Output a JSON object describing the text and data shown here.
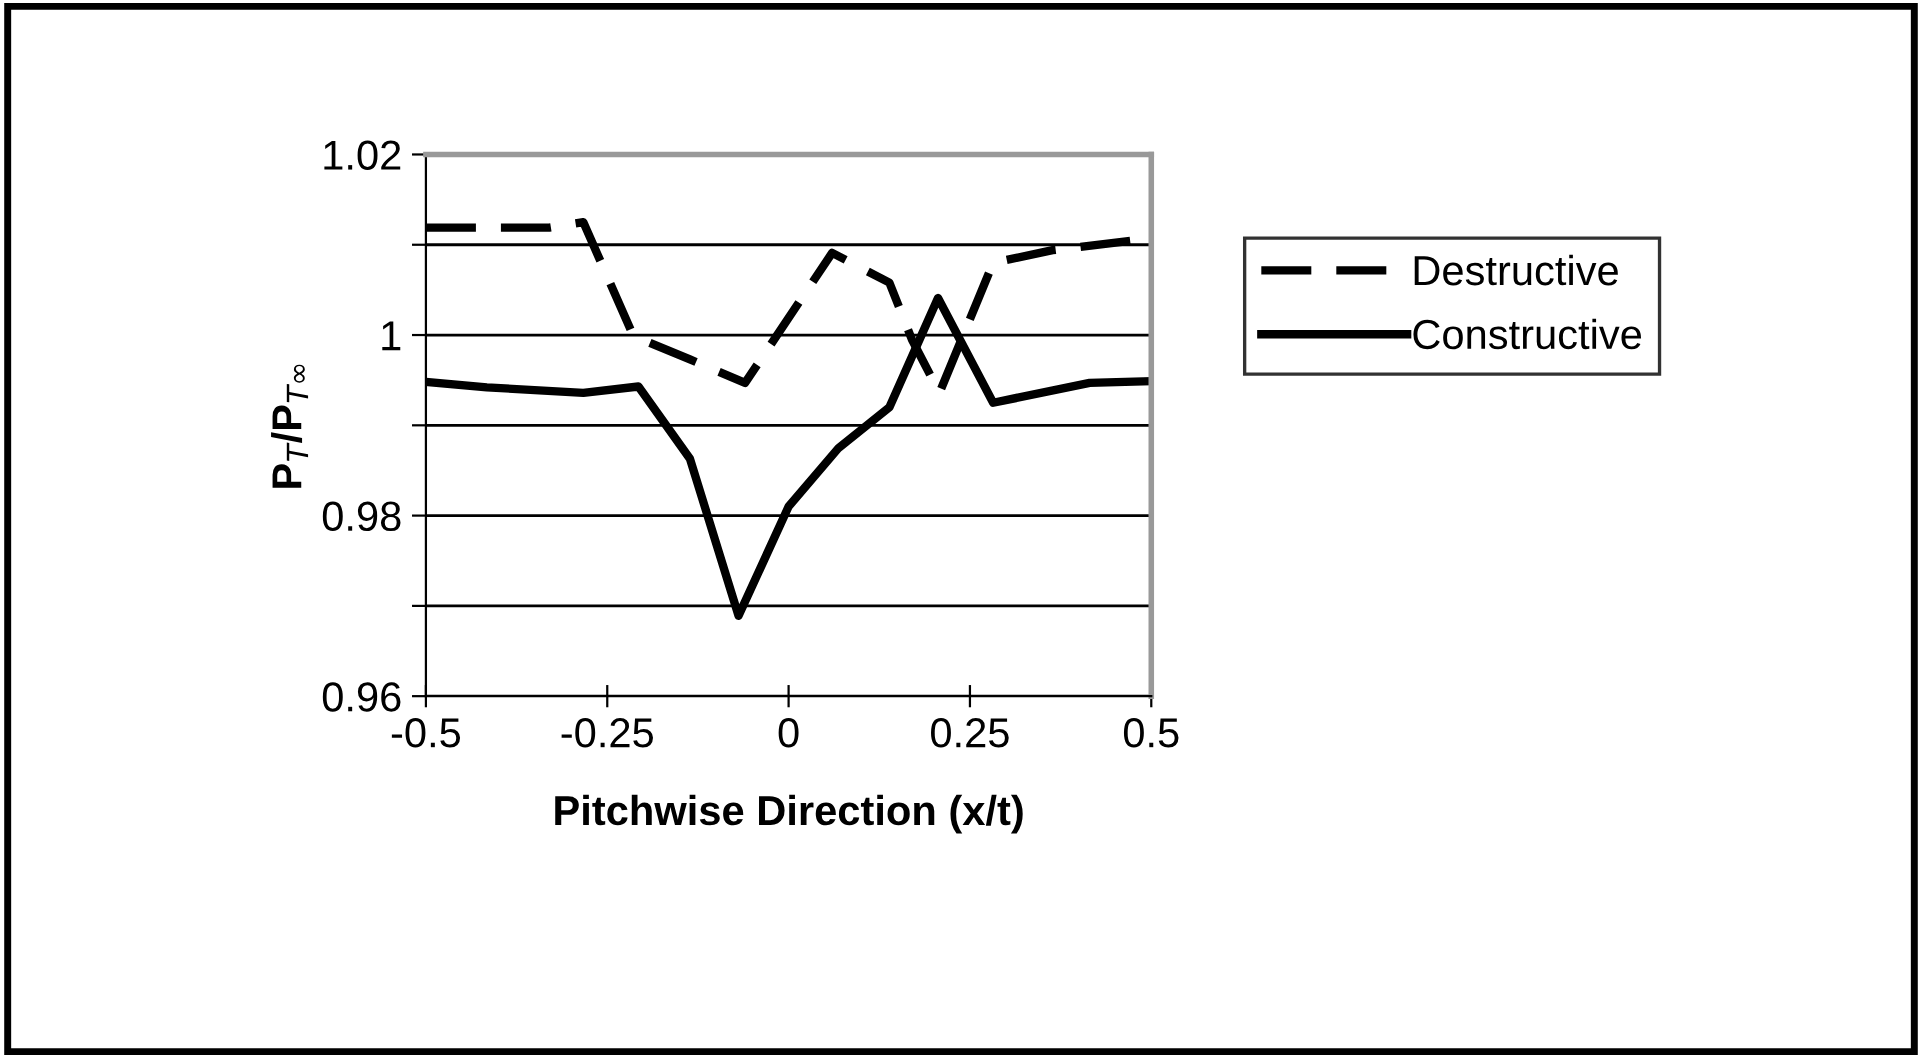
{
  "chart_data": {
    "type": "line",
    "xlabel": "Pitchwise Direction (x/t)",
    "ylabel": "P$_{T}$/P$_{T∞}$",
    "xlim": [
      -0.5,
      0.5
    ],
    "xticks": [
      -0.5,
      -0.25,
      0,
      0.25,
      0.5
    ],
    "ylim": [
      0.96,
      1.02
    ],
    "yticks": [
      0.96,
      {
        "value": 0.97,
        "label": null
      },
      0.98,
      {
        "value": 0.99,
        "label": null
      },
      1,
      {
        "value": 1.01,
        "label": null
      },
      1.02
    ],
    "grid": "y",
    "legend": "right",
    "marker": "none",
    "series": [
      {
        "name": "Destructive",
        "color": "#000000",
        "line_style": "dashed",
        "x": [
          -0.5,
          -0.33,
          -0.283,
          -0.214,
          -0.136,
          -0.06,
          0.06,
          0.139,
          0.17,
          0.208,
          0.282,
          0.364,
          0.5
        ],
        "values": [
          1.0119,
          1.0119,
          1.0125,
          0.9999,
          0.9973,
          0.9947,
          1.0091,
          1.0058,
          0.9995,
          0.9936,
          1.008,
          1.0094,
          1.0107
        ]
      },
      {
        "name": "Constructive",
        "color": "#000000",
        "line_style": "solid",
        "x": [
          -0.5,
          -0.416,
          -0.283,
          -0.207,
          -0.136,
          -0.069,
          0,
          0.069,
          0.139,
          0.206,
          0.282,
          0.415,
          0.5
        ],
        "values": [
          0.9948,
          0.9942,
          0.9936,
          0.9943,
          0.9863,
          0.9689,
          0.981,
          0.9875,
          0.992,
          1.0041,
          0.9925,
          0.9947,
          0.9949
        ]
      }
    ]
  }
}
